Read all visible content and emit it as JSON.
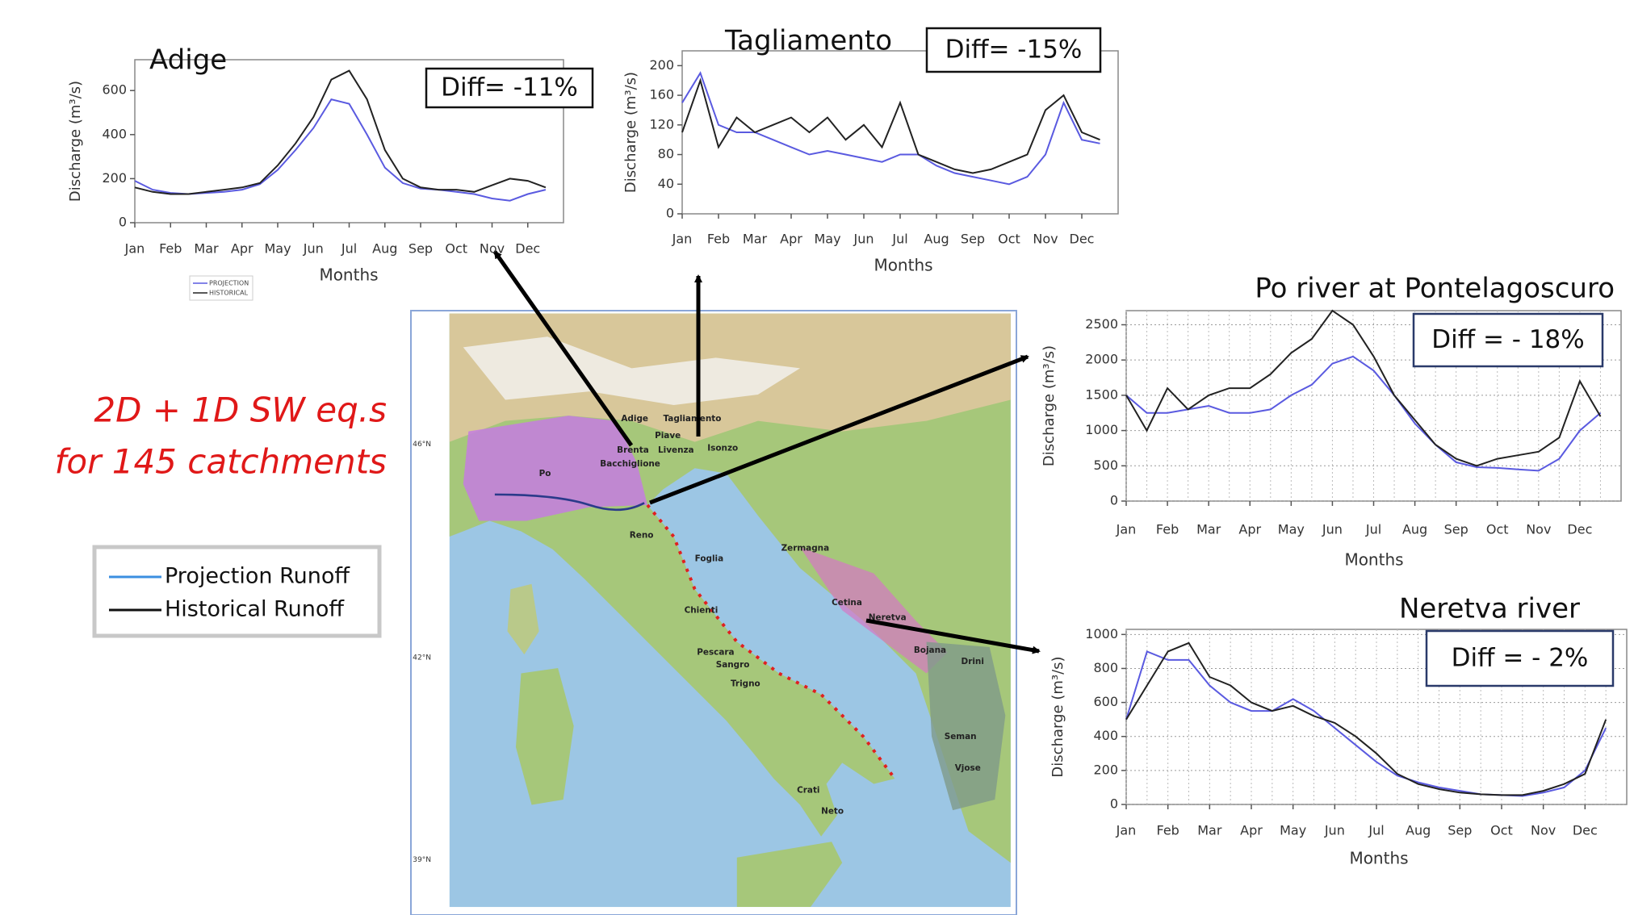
{
  "chart_data": [
    {
      "type": "line",
      "title": "Adige",
      "annotation": "Diff= -11%",
      "x_label": "Months",
      "y_label": "Discharge (m³/s)",
      "categories": [
        "Jan",
        null,
        "Feb",
        null,
        "Mar",
        null,
        "Apr",
        null,
        "May",
        null,
        "Jun",
        null,
        "Jul",
        null,
        "Aug",
        null,
        "Sep",
        null,
        "Oct",
        null,
        "Nov",
        null,
        "Dec",
        null
      ],
      "series": [
        {
          "name": "PROJECTION",
          "color": "#5a5ae0",
          "values": [
            190,
            150,
            135,
            130,
            135,
            140,
            150,
            175,
            240,
            330,
            430,
            560,
            540,
            400,
            250,
            180,
            155,
            150,
            140,
            130,
            110,
            100,
            130,
            150
          ]
        },
        {
          "name": "HISTORICAL",
          "color": "#222222",
          "values": [
            160,
            140,
            130,
            130,
            140,
            150,
            160,
            180,
            260,
            360,
            480,
            650,
            690,
            560,
            330,
            200,
            160,
            150,
            150,
            140,
            170,
            200,
            190,
            160
          ]
        }
      ],
      "ylim": [
        0,
        740
      ],
      "yticks": [
        0,
        200,
        400,
        600
      ],
      "grid": false
    },
    {
      "type": "line",
      "title": "Tagliamento",
      "annotation": "Diff=  -15%",
      "x_label": "Months",
      "y_label": "Discharge (m³/s)",
      "categories": [
        "Jan",
        null,
        "Feb",
        null,
        "Mar",
        null,
        "Apr",
        null,
        "May",
        null,
        "Jun",
        null,
        "Jul",
        null,
        "Aug",
        null,
        "Sep",
        null,
        "Oct",
        null,
        "Nov",
        null,
        "Dec",
        null
      ],
      "series": [
        {
          "color": "#5a5ae0",
          "values": [
            150,
            190,
            120,
            110,
            110,
            100,
            90,
            80,
            85,
            80,
            75,
            70,
            80,
            80,
            65,
            55,
            50,
            45,
            40,
            50,
            80,
            150,
            100,
            95
          ]
        },
        {
          "color": "#222222",
          "values": [
            110,
            180,
            90,
            130,
            110,
            120,
            130,
            110,
            130,
            100,
            120,
            90,
            150,
            80,
            70,
            60,
            55,
            60,
            70,
            80,
            140,
            160,
            110,
            100
          ]
        }
      ],
      "ylim": [
        0,
        220
      ],
      "yticks": [
        0,
        40,
        80,
        120,
        160,
        200
      ],
      "grid": false
    },
    {
      "type": "line",
      "title": "Po river at Pontelagoscuro",
      "annotation": "Diff = - 18%",
      "x_label": "Months",
      "y_label": "Discharge (m³/s)",
      "categories": [
        "Jan",
        null,
        "Feb",
        null,
        "Mar",
        null,
        "Apr",
        null,
        "May",
        null,
        "Jun",
        null,
        "Jul",
        null,
        "Aug",
        null,
        "Sep",
        null,
        "Oct",
        null,
        "Nov",
        null,
        "Dec",
        null
      ],
      "series": [
        {
          "color": "#5a5ae0",
          "values": [
            1500,
            1250,
            1250,
            1300,
            1350,
            1250,
            1250,
            1300,
            1500,
            1650,
            1950,
            2050,
            1850,
            1500,
            1100,
            800,
            550,
            480,
            470,
            450,
            430,
            600,
            1000,
            1250
          ]
        },
        {
          "color": "#222222",
          "values": [
            1500,
            1000,
            1600,
            1300,
            1500,
            1600,
            1600,
            1800,
            2100,
            2300,
            2700,
            2500,
            2050,
            1500,
            1150,
            800,
            600,
            500,
            600,
            650,
            700,
            900,
            1700,
            1200
          ]
        }
      ],
      "ylim": [
        0,
        2700
      ],
      "yticks": [
        0,
        500,
        1000,
        1500,
        2000,
        2500
      ],
      "grid": true
    },
    {
      "type": "line",
      "title": "Neretva river",
      "annotation": "Diff = - 2%",
      "x_label": "Months",
      "y_label": "Discharge (m³/s)",
      "categories": [
        "Jan",
        null,
        "Feb",
        null,
        "Mar",
        null,
        "Apr",
        null,
        "May",
        null,
        "Jun",
        null,
        "Jul",
        null,
        "Aug",
        null,
        "Sep",
        null,
        "Oct",
        null,
        "Nov",
        null,
        "Dec",
        null
      ],
      "series": [
        {
          "color": "#5a5ae0",
          "values": [
            500,
            900,
            850,
            850,
            700,
            600,
            550,
            550,
            620,
            550,
            450,
            350,
            250,
            170,
            130,
            100,
            80,
            60,
            55,
            50,
            70,
            100,
            200,
            450
          ]
        },
        {
          "color": "#222222",
          "values": [
            500,
            700,
            900,
            950,
            750,
            700,
            600,
            550,
            580,
            520,
            480,
            400,
            300,
            180,
            120,
            90,
            70,
            60,
            55,
            55,
            80,
            120,
            180,
            500
          ]
        }
      ],
      "ylim": [
        0,
        1030
      ],
      "yticks": [
        0,
        200,
        400,
        600,
        800,
        1000
      ],
      "grid": true
    }
  ],
  "slide": {
    "headline": [
      "2D + 1D SW eq.s",
      "for 145 catchments"
    ],
    "legend": [
      {
        "label": "Projection Runoff",
        "color": "#3b8fe0"
      },
      {
        "label": "Historical Runoff",
        "color": "#111111"
      }
    ]
  },
  "map": {
    "labels": [
      "Adige",
      "Tagliamento",
      "Piave",
      "Brenta",
      "Livenza",
      "Isonzo",
      "Bacchiglione",
      "Po",
      "Reno",
      "Foglia",
      "Chienti",
      "Pescara",
      "Sangro",
      "Trigno",
      "Zermagna",
      "Cetina",
      "Neretva",
      "Bojana",
      "Drini",
      "Seman",
      "Vjose",
      "Crati",
      "Neto"
    ],
    "latitude_labels": [
      "46°N",
      "42°N",
      "39°N"
    ]
  }
}
